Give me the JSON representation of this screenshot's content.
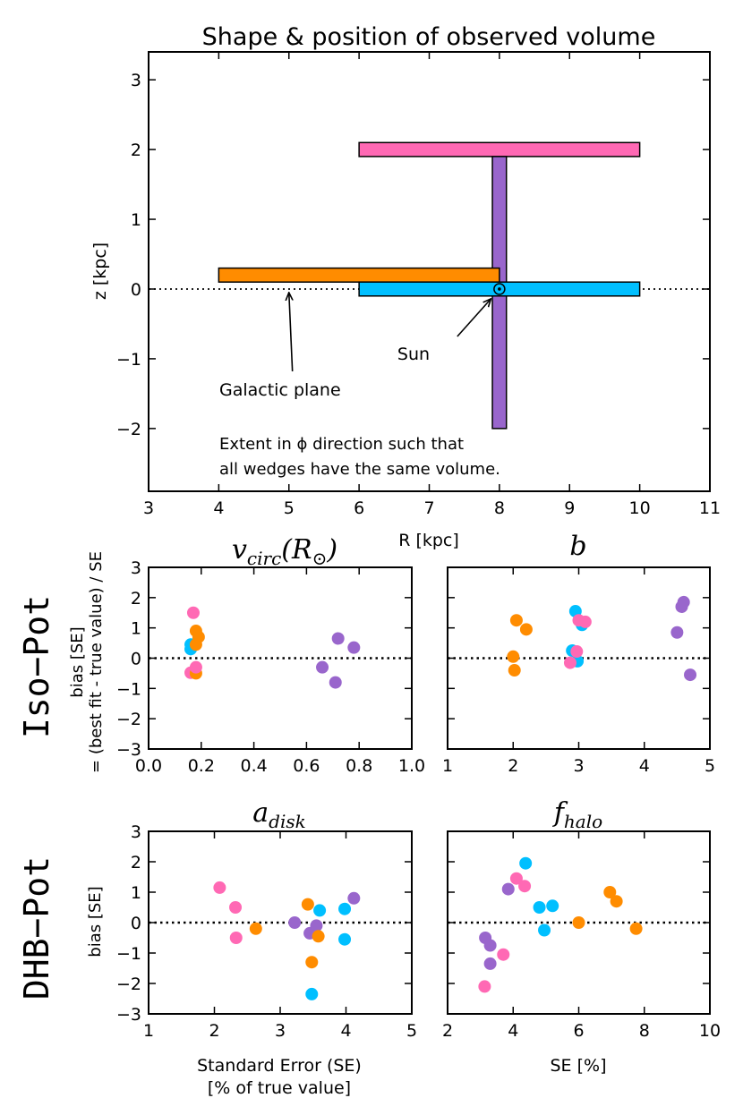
{
  "colors": {
    "pink": "#ff69b4",
    "orange": "#ff8c00",
    "cyan": "#00bfff",
    "purple": "#9966cc"
  },
  "row_labels": {
    "iso": "Iso−Pot",
    "dhb": "DHB−Pot"
  },
  "shared_ylabel": {
    "line1": "bias [SE]",
    "line2": "= (best fit - true value) / SE"
  },
  "chart_data": [
    {
      "id": "volume",
      "type": "rectangles",
      "title": "Shape & position of observed volume",
      "xlabel": "R [kpc]",
      "ylabel": "z [kpc]",
      "xlim": [
        3,
        11
      ],
      "ylim": [
        -2.9,
        3.4
      ],
      "xticks": [
        3,
        4,
        5,
        6,
        7,
        8,
        9,
        10,
        11
      ],
      "yticks": [
        -2,
        -1,
        0,
        1,
        2,
        3
      ],
      "rects": [
        {
          "name": "pink-wedge",
          "color": "pink",
          "x0": 6,
          "x1": 10,
          "z0": 1.9,
          "z1": 2.1
        },
        {
          "name": "purple-wedge",
          "color": "purple",
          "x0": 7.9,
          "x1": 8.1,
          "z0": -2.0,
          "z1": 1.9
        },
        {
          "name": "orange-wedge",
          "color": "orange",
          "x0": 4,
          "x1": 8,
          "z0": 0.1,
          "z1": 0.3
        },
        {
          "name": "cyan-wedge",
          "color": "cyan",
          "x0": 6,
          "x1": 10,
          "z0": -0.1,
          "z1": 0.1
        }
      ],
      "sun": {
        "R": 8,
        "z": 0,
        "label": "Sun",
        "label_R": 4.5,
        "label_z": -0.9
      },
      "plane_label": "Galactic plane",
      "plane_arrow": {
        "tail_R": 5.05,
        "tail_z": -1.18,
        "head_R": 5.0,
        "head_z": -0.05
      },
      "sun_arrow": {
        "tail_R": 7.4,
        "tail_z": -0.68,
        "head_R": 7.88,
        "head_z": -0.14
      },
      "note_line1": "Extent in ϕ direction such that",
      "note_line2": "all wedges have the same volume."
    },
    {
      "id": "vcirc",
      "type": "scatter",
      "title": "v",
      "title_sub": "circ",
      "title_suffix": "(R",
      "title_sub2": "⊙",
      "title_close": ")",
      "xlabel": "",
      "ylabel": "",
      "xlim": [
        0,
        1
      ],
      "ylim": [
        -3,
        3
      ],
      "xticks": [
        "0.0",
        "0.2",
        "0.4",
        "0.6",
        "0.8",
        "1.0"
      ],
      "yticks": [
        "−3",
        "−2",
        "−1",
        "0",
        "1",
        "2",
        "3"
      ],
      "points": [
        {
          "x": 0.17,
          "y": 1.5,
          "c": "pink"
        },
        {
          "x": 0.16,
          "y": 0.45,
          "c": "cyan"
        },
        {
          "x": 0.16,
          "y": 0.3,
          "c": "cyan"
        },
        {
          "x": 0.16,
          "y": -0.48,
          "c": "pink"
        },
        {
          "x": 0.18,
          "y": -0.5,
          "c": "orange"
        },
        {
          "x": 0.18,
          "y": 0.9,
          "c": "orange"
        },
        {
          "x": 0.19,
          "y": 0.7,
          "c": "orange"
        },
        {
          "x": 0.18,
          "y": 0.45,
          "c": "orange"
        },
        {
          "x": 0.18,
          "y": -0.3,
          "c": "pink"
        },
        {
          "x": 0.72,
          "y": 0.65,
          "c": "purple"
        },
        {
          "x": 0.78,
          "y": 0.35,
          "c": "purple"
        },
        {
          "x": 0.66,
          "y": -0.3,
          "c": "purple"
        },
        {
          "x": 0.71,
          "y": -0.8,
          "c": "purple"
        }
      ]
    },
    {
      "id": "b",
      "type": "scatter",
      "title": "b",
      "xlabel": "",
      "ylabel": "",
      "xlim": [
        1,
        5
      ],
      "ylim": [
        -3,
        3
      ],
      "xticks": [
        "1",
        "2",
        "3",
        "4",
        "5"
      ],
      "yticks": [],
      "points": [
        {
          "x": 2.05,
          "y": 1.25,
          "c": "orange"
        },
        {
          "x": 2.2,
          "y": 0.95,
          "c": "orange"
        },
        {
          "x": 2.0,
          "y": 0.05,
          "c": "orange"
        },
        {
          "x": 2.02,
          "y": -0.4,
          "c": "orange"
        },
        {
          "x": 2.95,
          "y": 1.55,
          "c": "cyan"
        },
        {
          "x": 3.05,
          "y": 1.1,
          "c": "cyan"
        },
        {
          "x": 2.9,
          "y": 0.25,
          "c": "cyan"
        },
        {
          "x": 2.98,
          "y": -0.1,
          "c": "cyan"
        },
        {
          "x": 3.0,
          "y": 1.25,
          "c": "pink"
        },
        {
          "x": 3.1,
          "y": 1.2,
          "c": "pink"
        },
        {
          "x": 2.97,
          "y": 0.22,
          "c": "pink"
        },
        {
          "x": 2.87,
          "y": -0.15,
          "c": "pink"
        },
        {
          "x": 4.6,
          "y": 1.85,
          "c": "purple"
        },
        {
          "x": 4.57,
          "y": 1.7,
          "c": "purple"
        },
        {
          "x": 4.5,
          "y": 0.85,
          "c": "purple"
        },
        {
          "x": 4.7,
          "y": -0.55,
          "c": "purple"
        }
      ]
    },
    {
      "id": "adisk",
      "type": "scatter",
      "title": "a",
      "title_sub": "disk",
      "xlabel": "Standard Error (SE)",
      "xlabel2": "[% of true value]",
      "ylabel": "bias [SE]",
      "xlim": [
        1,
        5
      ],
      "ylim": [
        -3,
        3
      ],
      "xticks": [
        "1",
        "2",
        "3",
        "4",
        "5"
      ],
      "yticks": [
        "−3",
        "−2",
        "−1",
        "0",
        "1",
        "2",
        "3"
      ],
      "points": [
        {
          "x": 2.08,
          "y": 1.15,
          "c": "pink"
        },
        {
          "x": 2.32,
          "y": 0.5,
          "c": "pink"
        },
        {
          "x": 2.33,
          "y": -0.5,
          "c": "pink"
        },
        {
          "x": 2.63,
          "y": -0.2,
          "c": "orange"
        },
        {
          "x": 3.22,
          "y": 0.0,
          "c": "purple"
        },
        {
          "x": 3.42,
          "y": 0.6,
          "c": "orange"
        },
        {
          "x": 3.45,
          "y": -0.35,
          "c": "purple"
        },
        {
          "x": 3.55,
          "y": -0.1,
          "c": "purple"
        },
        {
          "x": 3.6,
          "y": 0.4,
          "c": "cyan"
        },
        {
          "x": 3.58,
          "y": -0.45,
          "c": "orange"
        },
        {
          "x": 3.48,
          "y": -1.3,
          "c": "orange"
        },
        {
          "x": 3.48,
          "y": -2.35,
          "c": "cyan"
        },
        {
          "x": 3.98,
          "y": 0.45,
          "c": "cyan"
        },
        {
          "x": 3.98,
          "y": -0.55,
          "c": "cyan"
        },
        {
          "x": 4.12,
          "y": 0.8,
          "c": "purple"
        }
      ]
    },
    {
      "id": "fhalo",
      "type": "scatter",
      "title": "f",
      "title_sub": "halo",
      "xlabel": "SE [%]",
      "ylabel": "",
      "xlim": [
        2,
        10
      ],
      "ylim": [
        -3,
        3
      ],
      "xticks": [
        "2",
        "4",
        "6",
        "8",
        "10"
      ],
      "yticks": [],
      "points": [
        {
          "x": 3.15,
          "y": -0.5,
          "c": "purple"
        },
        {
          "x": 3.3,
          "y": -0.75,
          "c": "purple"
        },
        {
          "x": 3.3,
          "y": -1.35,
          "c": "purple"
        },
        {
          "x": 3.13,
          "y": -2.1,
          "c": "pink"
        },
        {
          "x": 3.7,
          "y": -1.05,
          "c": "pink"
        },
        {
          "x": 3.85,
          "y": 1.1,
          "c": "purple"
        },
        {
          "x": 4.1,
          "y": 1.45,
          "c": "pink"
        },
        {
          "x": 4.35,
          "y": 1.2,
          "c": "pink"
        },
        {
          "x": 4.38,
          "y": 1.95,
          "c": "cyan"
        },
        {
          "x": 4.8,
          "y": 0.5,
          "c": "cyan"
        },
        {
          "x": 5.2,
          "y": 0.55,
          "c": "cyan"
        },
        {
          "x": 4.95,
          "y": -0.25,
          "c": "cyan"
        },
        {
          "x": 6.0,
          "y": 0.0,
          "c": "orange"
        },
        {
          "x": 6.95,
          "y": 1.0,
          "c": "orange"
        },
        {
          "x": 7.15,
          "y": 0.7,
          "c": "orange"
        },
        {
          "x": 7.75,
          "y": -0.2,
          "c": "orange"
        }
      ]
    }
  ]
}
